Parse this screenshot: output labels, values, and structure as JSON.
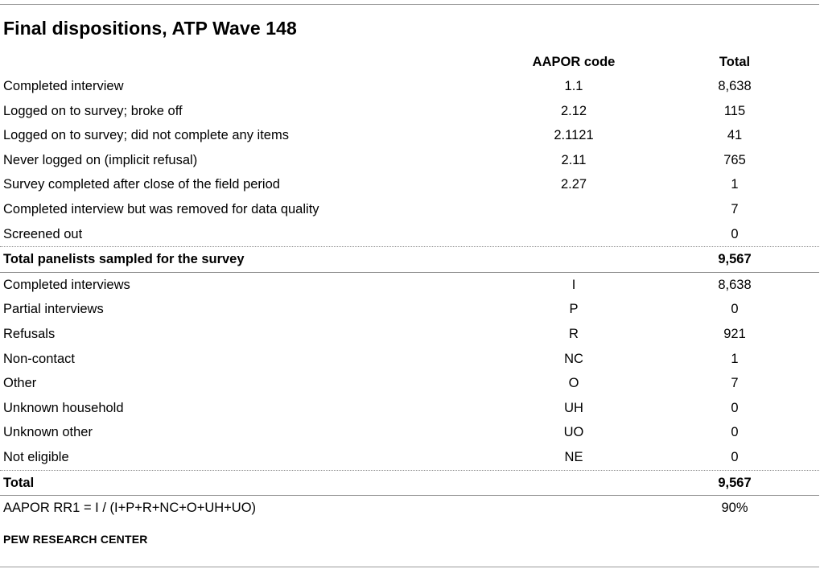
{
  "title": "Final dispositions, ATP Wave 148",
  "columns": {
    "code": "AAPOR code",
    "total": "Total"
  },
  "rows": [
    {
      "label": "Completed interview",
      "code": "1.1",
      "total": "8,638"
    },
    {
      "label": "Logged on to survey; broke off",
      "code": "2.12",
      "total": "115"
    },
    {
      "label": "Logged on to survey; did not complete any items",
      "code": "2.1121",
      "total": "41"
    },
    {
      "label": "Never logged on (implicit refusal)",
      "code": "2.11",
      "total": "765"
    },
    {
      "label": "Survey completed after close of the field period",
      "code": "2.27",
      "total": "1"
    },
    {
      "label": "Completed interview but was removed for data quality",
      "code": "",
      "total": "7"
    },
    {
      "label": "Screened out",
      "code": "",
      "total": "0"
    },
    {
      "label": "Total panelists sampled for the survey",
      "code": "",
      "total": "9,567"
    },
    {
      "label": "Completed interviews",
      "code": "I",
      "total": "8,638"
    },
    {
      "label": "Partial interviews",
      "code": "P",
      "total": "0"
    },
    {
      "label": "Refusals",
      "code": "R",
      "total": "921"
    },
    {
      "label": "Non-contact",
      "code": "NC",
      "total": "1"
    },
    {
      "label": "Other",
      "code": "O",
      "total": "7"
    },
    {
      "label": "Unknown household",
      "code": "UH",
      "total": "0"
    },
    {
      "label": "Unknown other",
      "code": "UO",
      "total": "0"
    },
    {
      "label": "Not eligible",
      "code": "NE",
      "total": "0"
    },
    {
      "label": "Total",
      "code": "",
      "total": "9,567"
    },
    {
      "label": "AAPOR RR1 = I / (I+P+R+NC+O+UH+UO)",
      "code": "",
      "total": "90%"
    }
  ],
  "footer": "PEW RESEARCH CENTER"
}
